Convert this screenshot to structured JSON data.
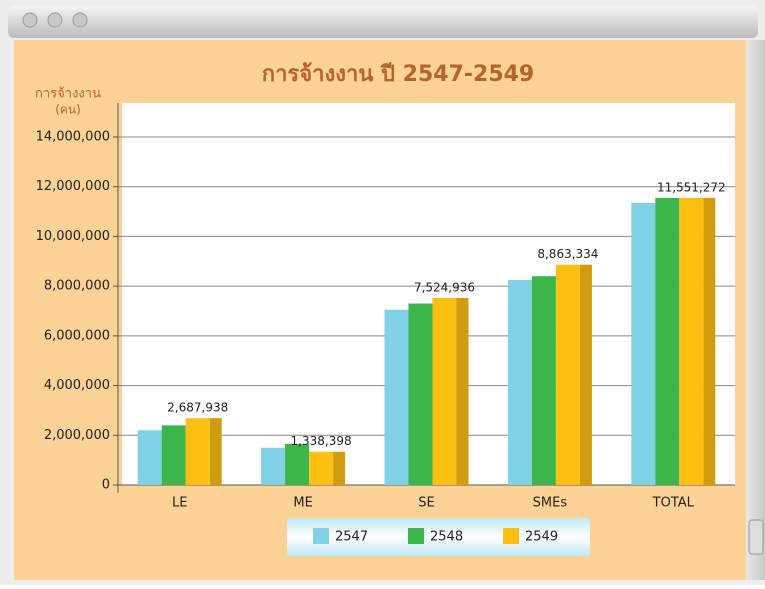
{
  "chart_data": {
    "type": "bar3d",
    "title": "การจ้างงาน ปี 2547-2549",
    "y_label": [
      "การจ้างงาน",
      "(คน)"
    ],
    "categories": [
      "LE",
      "ME",
      "SE",
      "SMEs",
      "TOTAL"
    ],
    "series": [
      {
        "name": "2547",
        "color": "#80d0e6",
        "values": [
          2200000,
          1500000,
          7050000,
          8250000,
          11350000
        ]
      },
      {
        "name": "2548",
        "color": "#3cb54a",
        "values": [
          2400000,
          1650000,
          7300000,
          8400000,
          11550000
        ]
      },
      {
        "name": "2549",
        "color": "#fdc012",
        "values": [
          2687938,
          1338398,
          7524936,
          8863334,
          11551272
        ],
        "value_labels": [
          "2,687,938",
          "1,338,398",
          "7,524,936",
          "8,863,334",
          "11,551,272"
        ]
      }
    ],
    "ylim": [
      0,
      14000000
    ],
    "yticks": [
      0,
      {
        "value": 2000000,
        "label": "2,000,000"
      },
      {
        "value": 4000000,
        "label": "4,000,000"
      },
      {
        "value": 6000000,
        "label": "6,000,000"
      },
      {
        "value": 8000000,
        "label": "8,000,000"
      },
      {
        "value": 10000000,
        "label": "10,000,000"
      },
      {
        "value": 12000000,
        "label": "12,000,000"
      },
      {
        "value": 14000000,
        "label": "14,000,000"
      }
    ],
    "grid": true
  }
}
